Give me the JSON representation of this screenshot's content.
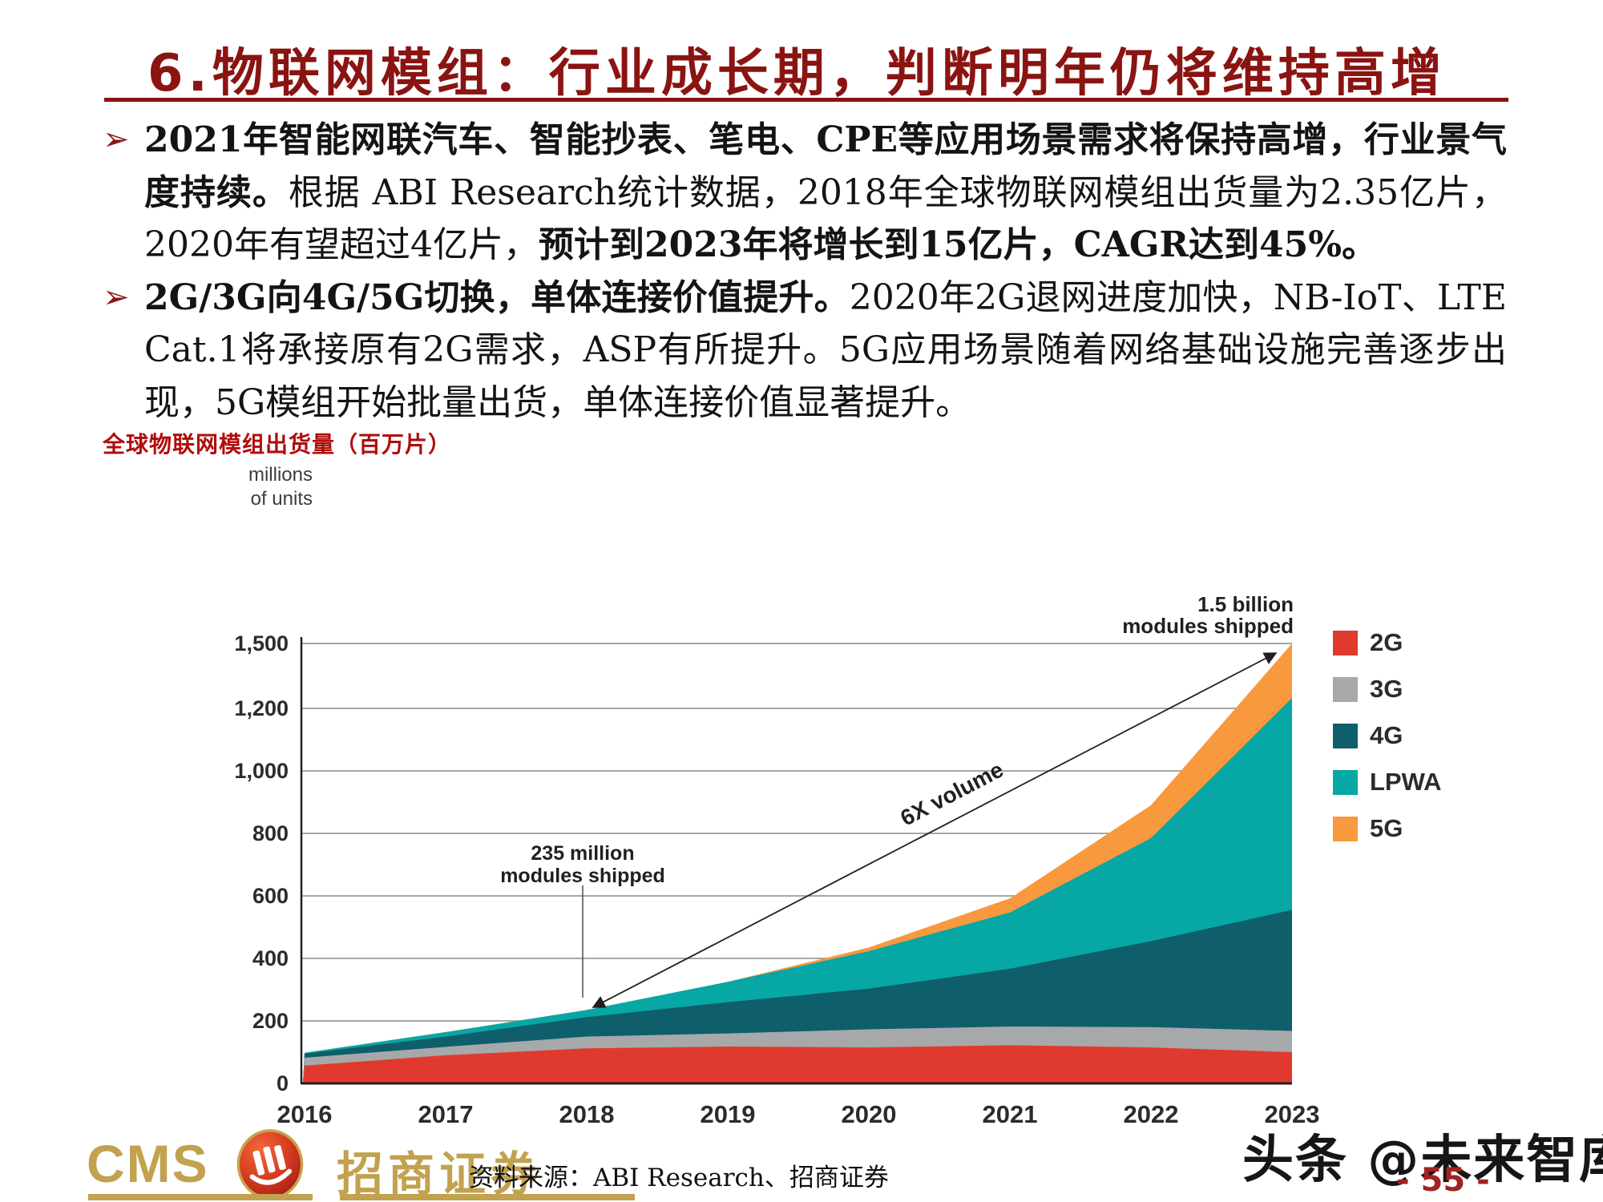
{
  "slide": {
    "title": "6.物联网模组：行业成长期，判断明年仍将维持高增",
    "bullet_marker_glyph": "➢",
    "bullets": [
      {
        "segments": [
          {
            "text": "2021年智能网联汽车、智能抄表、笔电、CPE等应用场景需求将保持高增，行业景气度持续。",
            "bold": true
          },
          {
            "text": "根据 ABI Research统计数据，2018年全球物联网模组出货量为2.35亿片，2020年有望超过4亿片，",
            "bold": false
          },
          {
            "text": "预计到2023年将增长到15亿片，CAGR达到45%。",
            "bold": true
          }
        ]
      },
      {
        "segments": [
          {
            "text": "2G/3G向4G/5G切换，单体连接价值提升。",
            "bold": true
          },
          {
            "text": "2020年2G退网进度加快，NB-IoT、LTE Cat.1将承接原有2G需求，ASP有所提升。5G应用场景随着网络基础设施完善逐步出现，5G模组开始批量出货，单体连接价值显著提升。",
            "bold": false
          }
        ]
      }
    ],
    "chart_heading": "全球物联网模组出货量（百万片）"
  },
  "chart_data": {
    "type": "area",
    "stacked": true,
    "title": "全球物联网模组出货量（百万片）",
    "unit_label_lines": [
      "millions",
      "of units"
    ],
    "categories": [
      "2016",
      "2017",
      "2018",
      "2019",
      "2020",
      "2021",
      "2022",
      "2023"
    ],
    "series": [
      {
        "name": "2G",
        "color": "#e03a2e",
        "values": [
          57,
          90,
          112,
          118,
          115,
          122,
          115,
          100
        ]
      },
      {
        "name": "3G",
        "color": "#a7a8aa",
        "values": [
          25,
          27,
          38,
          42,
          58,
          60,
          65,
          68
        ]
      },
      {
        "name": "4G",
        "color": "#0e5e6c",
        "values": [
          13,
          33,
          62,
          100,
          130,
          185,
          275,
          387
        ]
      },
      {
        "name": "LPWA",
        "color": "#06a7a4",
        "values": [
          3,
          14,
          23,
          65,
          120,
          180,
          330,
          693
        ]
      },
      {
        "name": "5G",
        "color": "#f8993e",
        "values": [
          0,
          0,
          0,
          0,
          12,
          45,
          105,
          252
        ]
      }
    ],
    "totals": [
      98,
      164,
      235,
      325,
      435,
      592,
      890,
      1500
    ],
    "y_ticks": [
      0,
      200,
      400,
      600,
      800,
      1000,
      1200,
      1500
    ],
    "y_tick_labels": [
      "0",
      "200",
      "400",
      "600",
      "800",
      "1,000",
      "1,200",
      "1,500"
    ],
    "axis_note": "top interval 1200-1500 compressed to one gridline step",
    "legend_position": "right",
    "grid": true,
    "annotations": {
      "a2018": {
        "lines": [
          "235 million",
          "modules shipped"
        ],
        "year": "2018",
        "value": 235
      },
      "a2023": {
        "lines": [
          "1.5 billion",
          "modules shipped"
        ],
        "year": "2023",
        "value": 1500
      },
      "growth": {
        "text": "6X volume"
      }
    }
  },
  "footer": {
    "logo": {
      "latin": "CMS",
      "cn": "招商证券"
    },
    "source": "资料来源：ABI Research、招商证券",
    "watermark": "头条 @未来智库",
    "page_number": "- 55 -"
  },
  "colors": {
    "title_maroon": "#8a1412",
    "heading_red": "#b00d0d",
    "page_red": "#a32222",
    "gold": "#c2a14f",
    "axis_dark": "#231f20",
    "grid_gray": "#8c8c8c"
  }
}
